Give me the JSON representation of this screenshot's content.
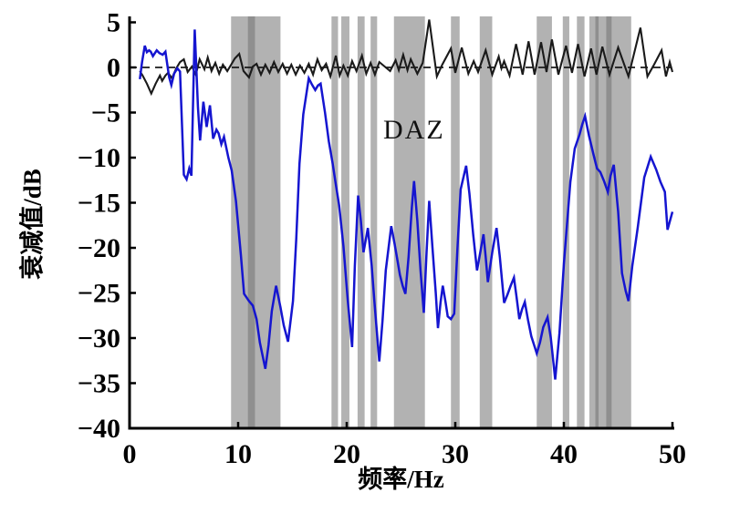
{
  "figure": {
    "xlabel": "频率/Hz",
    "ylabel": "衰减值/dB",
    "annotation_label": "DAZ",
    "background": "#ffffff"
  },
  "chart_data": {
    "type": "line",
    "title": "",
    "xlabel": "频率/Hz",
    "ylabel": "衰减值/dB",
    "xlim": [
      0,
      50
    ],
    "ylim": [
      -40,
      5
    ],
    "grid": false,
    "legend": null,
    "xticks": [
      0,
      10,
      20,
      30,
      40,
      50
    ],
    "yticks": [
      5,
      0,
      -5,
      -10,
      -15,
      -20,
      -25,
      -30,
      -35,
      -40
    ],
    "xtick_labels": [
      "0",
      "10",
      "20",
      "30",
      "40",
      "50"
    ],
    "ytick_labels": [
      "5",
      "0",
      "−5",
      "−10",
      "−15",
      "−20",
      "−25",
      "−30",
      "−35",
      "−40"
    ],
    "zero_line": {
      "y": 0,
      "style": "dashed",
      "color": "#1a1a1a"
    },
    "annotation": {
      "text": "DAZ",
      "x": 26.0,
      "y": -7.2
    },
    "bands": {
      "color": "#b2b2b2",
      "dark_color": "#8f8f8f",
      "regions": [
        [
          9.35,
          13.9
        ],
        [
          18.6,
          19.2
        ],
        [
          19.5,
          20.25
        ],
        [
          21.0,
          21.65
        ],
        [
          22.2,
          22.8
        ],
        [
          24.35,
          27.2
        ],
        [
          29.6,
          30.4
        ],
        [
          32.25,
          33.4
        ],
        [
          37.5,
          38.9
        ],
        [
          39.9,
          40.5
        ],
        [
          41.2,
          41.9
        ],
        [
          42.35,
          46.2
        ]
      ],
      "dark_regions": [
        [
          10.9,
          11.55
        ],
        [
          42.9,
          43.2
        ],
        [
          43.9,
          44.4
        ]
      ]
    },
    "series": [
      {
        "name": "black_reference_curve",
        "color": "#1a1a1a",
        "width": 2.1,
        "points": [
          [
            0.95,
            -0.4
          ],
          [
            1.2,
            -0.9
          ],
          [
            1.6,
            -1.8
          ],
          [
            2.0,
            -2.9
          ],
          [
            2.4,
            -1.8
          ],
          [
            2.8,
            -0.9
          ],
          [
            3.0,
            -1.5
          ],
          [
            3.3,
            -0.9
          ],
          [
            3.55,
            -0.6
          ],
          [
            3.9,
            -1.2
          ],
          [
            4.3,
            -0.1
          ],
          [
            4.65,
            0.6
          ],
          [
            5.0,
            0.9
          ],
          [
            5.35,
            -0.5
          ],
          [
            5.75,
            0.1
          ],
          [
            6.1,
            -0.8
          ],
          [
            6.45,
            0.9
          ],
          [
            6.9,
            -0.2
          ],
          [
            7.2,
            1.1
          ],
          [
            7.55,
            -0.4
          ],
          [
            7.9,
            0.5
          ],
          [
            8.25,
            -0.7
          ],
          [
            8.6,
            0.3
          ],
          [
            9.0,
            -0.4
          ],
          [
            9.35,
            0.3
          ],
          [
            9.7,
            1.0
          ],
          [
            10.1,
            1.5
          ],
          [
            10.5,
            -0.4
          ],
          [
            11.0,
            -1.1
          ],
          [
            11.35,
            0.1
          ],
          [
            11.7,
            0.4
          ],
          [
            12.1,
            -0.8
          ],
          [
            12.5,
            0.3
          ],
          [
            12.9,
            -0.6
          ],
          [
            13.3,
            0.6
          ],
          [
            13.7,
            -0.5
          ],
          [
            14.1,
            0.4
          ],
          [
            14.5,
            -0.7
          ],
          [
            14.9,
            0.3
          ],
          [
            15.3,
            -0.8
          ],
          [
            15.7,
            0.2
          ],
          [
            16.1,
            -0.6
          ],
          [
            16.5,
            0.4
          ],
          [
            16.9,
            -0.8
          ],
          [
            17.3,
            0.9
          ],
          [
            17.7,
            -0.3
          ],
          [
            18.1,
            0.4
          ],
          [
            18.5,
            -1.0
          ],
          [
            19.0,
            1.3
          ],
          [
            19.35,
            -0.9
          ],
          [
            19.7,
            0.2
          ],
          [
            20.1,
            -0.9
          ],
          [
            20.5,
            0.7
          ],
          [
            20.9,
            -0.4
          ],
          [
            21.4,
            1.3
          ],
          [
            21.8,
            -0.7
          ],
          [
            22.2,
            0.5
          ],
          [
            22.6,
            -0.8
          ],
          [
            23.0,
            0.6
          ],
          [
            23.5,
            0.1
          ],
          [
            24.0,
            -0.4
          ],
          [
            24.5,
            0.8
          ],
          [
            24.8,
            -0.3
          ],
          [
            25.2,
            1.4
          ],
          [
            25.6,
            -0.3
          ],
          [
            25.9,
            0.9
          ],
          [
            26.5,
            -0.7
          ],
          [
            27.0,
            0.5
          ],
          [
            27.6,
            5.3
          ],
          [
            28.3,
            -1.0
          ],
          [
            28.8,
            0.3
          ],
          [
            29.6,
            2.1
          ],
          [
            30.0,
            -0.6
          ],
          [
            30.6,
            2.2
          ],
          [
            31.2,
            -0.7
          ],
          [
            31.7,
            0.7
          ],
          [
            32.1,
            -0.5
          ],
          [
            32.8,
            1.9
          ],
          [
            33.4,
            -0.8
          ],
          [
            34.0,
            1.2
          ],
          [
            34.25,
            -0.1
          ],
          [
            34.5,
            0.7
          ],
          [
            35.0,
            -0.9
          ],
          [
            35.6,
            2.6
          ],
          [
            36.2,
            -0.8
          ],
          [
            36.75,
            2.9
          ],
          [
            37.3,
            -0.8
          ],
          [
            37.9,
            2.8
          ],
          [
            38.4,
            -0.5
          ],
          [
            38.9,
            3.1
          ],
          [
            39.5,
            -0.8
          ],
          [
            40.2,
            2.4
          ],
          [
            40.75,
            -0.6
          ],
          [
            41.3,
            2.6
          ],
          [
            41.9,
            -1.0
          ],
          [
            42.5,
            2.1
          ],
          [
            43.0,
            -0.8
          ],
          [
            43.55,
            2.3
          ],
          [
            44.2,
            -0.8
          ],
          [
            45.0,
            2.2
          ],
          [
            45.95,
            -1.0
          ],
          [
            47.05,
            4.4
          ],
          [
            47.7,
            -1.0
          ],
          [
            48.3,
            0.3
          ],
          [
            49.0,
            1.9
          ],
          [
            49.4,
            -1.0
          ],
          [
            49.75,
            0.6
          ],
          [
            50.0,
            -0.5
          ]
        ]
      },
      {
        "name": "blue_attenuation_curve",
        "color": "#1515d0",
        "width": 2.5,
        "points": [
          [
            0.95,
            -1.3
          ],
          [
            1.15,
            0.6
          ],
          [
            1.4,
            2.4
          ],
          [
            1.6,
            1.7
          ],
          [
            1.8,
            1.9
          ],
          [
            1.95,
            1.75
          ],
          [
            2.15,
            1.25
          ],
          [
            2.5,
            1.9
          ],
          [
            2.75,
            1.6
          ],
          [
            3.05,
            1.4
          ],
          [
            3.3,
            1.75
          ],
          [
            3.65,
            -1.1
          ],
          [
            3.85,
            -1.95
          ],
          [
            4.1,
            -0.7
          ],
          [
            4.4,
            -0.1
          ],
          [
            4.65,
            -0.45
          ],
          [
            5.0,
            -11.9
          ],
          [
            5.25,
            -12.4
          ],
          [
            5.5,
            -11.2
          ],
          [
            5.7,
            -12.0
          ],
          [
            6.0,
            4.2
          ],
          [
            6.3,
            -4.5
          ],
          [
            6.5,
            -8.1
          ],
          [
            6.8,
            -3.8
          ],
          [
            7.1,
            -6.6
          ],
          [
            7.4,
            -4.2
          ],
          [
            7.7,
            -7.9
          ],
          [
            8.0,
            -6.9
          ],
          [
            8.2,
            -7.3
          ],
          [
            8.45,
            -8.5
          ],
          [
            8.7,
            -7.7
          ],
          [
            9.1,
            -10.0
          ],
          [
            9.4,
            -11.4
          ],
          [
            9.8,
            -14.8
          ],
          [
            10.25,
            -20.8
          ],
          [
            10.55,
            -25.1
          ],
          [
            11.0,
            -25.9
          ],
          [
            11.35,
            -26.4
          ],
          [
            11.7,
            -27.9
          ],
          [
            12.0,
            -30.5
          ],
          [
            12.5,
            -33.4
          ],
          [
            12.8,
            -30.8
          ],
          [
            13.1,
            -27.0
          ],
          [
            13.5,
            -24.2
          ],
          [
            13.9,
            -26.6
          ],
          [
            14.2,
            -28.6
          ],
          [
            14.6,
            -30.4
          ],
          [
            15.05,
            -25.9
          ],
          [
            15.35,
            -19.0
          ],
          [
            15.65,
            -10.7
          ],
          [
            16.0,
            -5.2
          ],
          [
            16.5,
            -1.2
          ],
          [
            16.8,
            -1.9
          ],
          [
            17.1,
            -2.5
          ],
          [
            17.35,
            -2.0
          ],
          [
            17.6,
            -1.8
          ],
          [
            18.0,
            -5.0
          ],
          [
            18.35,
            -8.2
          ],
          [
            18.7,
            -10.6
          ],
          [
            19.0,
            -13.0
          ],
          [
            19.3,
            -15.3
          ],
          [
            19.7,
            -19.8
          ],
          [
            20.1,
            -25.9
          ],
          [
            20.5,
            -31.0
          ],
          [
            20.75,
            -22.0
          ],
          [
            21.05,
            -14.2
          ],
          [
            21.3,
            -17.0
          ],
          [
            21.55,
            -20.5
          ],
          [
            21.95,
            -17.8
          ],
          [
            22.3,
            -22.0
          ],
          [
            22.55,
            -25.9
          ],
          [
            22.75,
            -28.9
          ],
          [
            23.0,
            -32.6
          ],
          [
            23.3,
            -28.0
          ],
          [
            23.6,
            -22.5
          ],
          [
            24.1,
            -17.6
          ],
          [
            24.4,
            -19.5
          ],
          [
            24.65,
            -21.2
          ],
          [
            24.9,
            -23.0
          ],
          [
            25.15,
            -24.2
          ],
          [
            25.4,
            -25.1
          ],
          [
            25.7,
            -21.0
          ],
          [
            26.0,
            -15.5
          ],
          [
            26.2,
            -12.6
          ],
          [
            26.5,
            -17.0
          ],
          [
            26.8,
            -22.5
          ],
          [
            27.1,
            -27.2
          ],
          [
            27.35,
            -20.5
          ],
          [
            27.6,
            -14.8
          ],
          [
            27.9,
            -20.0
          ],
          [
            28.2,
            -25.0
          ],
          [
            28.4,
            -28.9
          ],
          [
            28.65,
            -26.0
          ],
          [
            28.85,
            -24.2
          ],
          [
            29.1,
            -26.0
          ],
          [
            29.3,
            -27.6
          ],
          [
            29.6,
            -27.9
          ],
          [
            29.9,
            -27.3
          ],
          [
            30.2,
            -20.0
          ],
          [
            30.5,
            -13.5
          ],
          [
            31.0,
            -10.9
          ],
          [
            31.3,
            -14.0
          ],
          [
            31.65,
            -18.5
          ],
          [
            32.0,
            -22.5
          ],
          [
            32.3,
            -20.5
          ],
          [
            32.6,
            -18.5
          ],
          [
            32.8,
            -21.0
          ],
          [
            33.0,
            -23.8
          ],
          [
            33.4,
            -20.5
          ],
          [
            33.8,
            -17.8
          ],
          [
            34.1,
            -21.0
          ],
          [
            34.5,
            -26.1
          ],
          [
            34.8,
            -25.2
          ],
          [
            35.1,
            -24.2
          ],
          [
            35.4,
            -23.3
          ],
          [
            35.65,
            -25.5
          ],
          [
            35.9,
            -27.9
          ],
          [
            36.15,
            -26.8
          ],
          [
            36.4,
            -26.0
          ],
          [
            36.7,
            -28.0
          ],
          [
            37.0,
            -29.8
          ],
          [
            37.5,
            -31.7
          ],
          [
            37.8,
            -30.5
          ],
          [
            38.1,
            -28.8
          ],
          [
            38.5,
            -27.7
          ],
          [
            38.8,
            -30.0
          ],
          [
            39.2,
            -34.6
          ],
          [
            39.6,
            -29.4
          ],
          [
            40.0,
            -21.8
          ],
          [
            40.6,
            -12.7
          ],
          [
            41.0,
            -9.0
          ],
          [
            41.45,
            -7.4
          ],
          [
            41.7,
            -6.3
          ],
          [
            41.95,
            -5.4
          ],
          [
            42.3,
            -7.5
          ],
          [
            42.7,
            -9.5
          ],
          [
            43.05,
            -11.2
          ],
          [
            43.35,
            -11.6
          ],
          [
            43.7,
            -12.6
          ],
          [
            44.05,
            -13.8
          ],
          [
            44.3,
            -12.0
          ],
          [
            44.6,
            -10.8
          ],
          [
            45.0,
            -16.0
          ],
          [
            45.35,
            -22.8
          ],
          [
            45.7,
            -24.8
          ],
          [
            45.95,
            -25.9
          ],
          [
            46.3,
            -22.0
          ],
          [
            46.8,
            -17.8
          ],
          [
            47.4,
            -12.2
          ],
          [
            48.0,
            -9.9
          ],
          [
            48.5,
            -11.3
          ],
          [
            48.9,
            -12.7
          ],
          [
            49.3,
            -13.8
          ],
          [
            49.55,
            -18.0
          ],
          [
            50.0,
            -16.0
          ]
        ]
      }
    ]
  }
}
